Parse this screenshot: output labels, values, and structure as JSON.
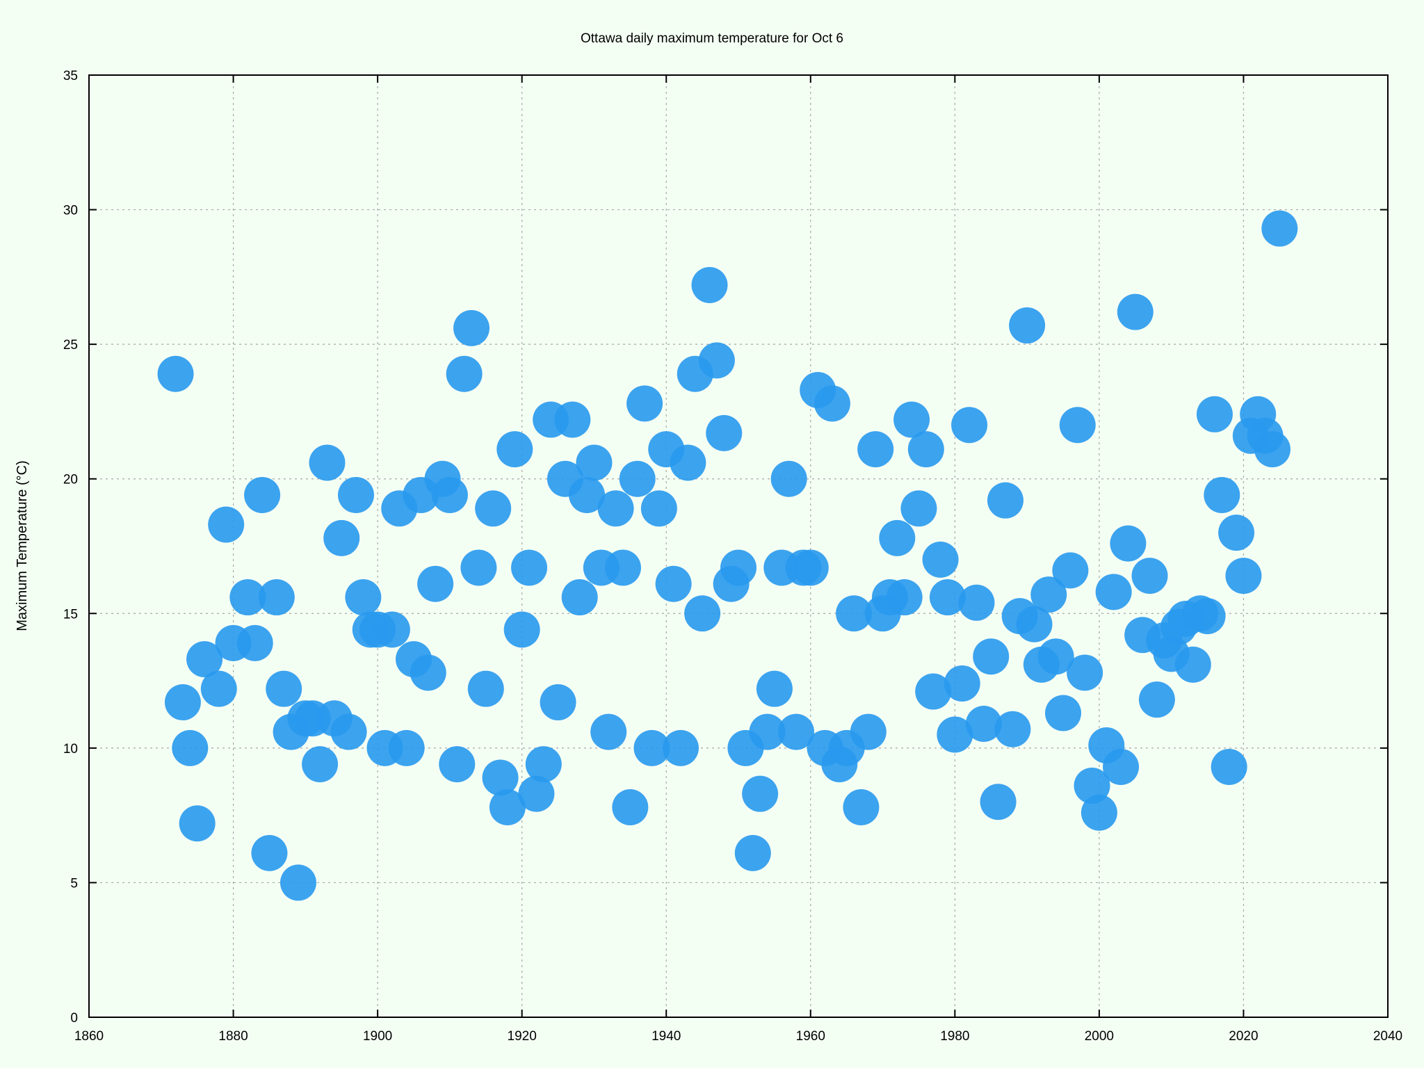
{
  "chart_data": {
    "type": "scatter",
    "title": "Ottawa daily maximum temperature for Oct 6",
    "xlabel": "",
    "ylabel": "Maximum Temperature (°C)",
    "xlim": [
      1860,
      2040
    ],
    "ylim": [
      0,
      35
    ],
    "x_ticks": [
      1860,
      1880,
      1900,
      1920,
      1940,
      1960,
      1980,
      2000,
      2020,
      2040
    ],
    "y_ticks": [
      0,
      5,
      10,
      15,
      20,
      25,
      30,
      35
    ],
    "grid": true,
    "legend": "none",
    "marker_color": "#2899ee",
    "series": [
      {
        "points": [
          [
            1872,
            23.9
          ],
          [
            1873,
            11.7
          ],
          [
            1874,
            10.0
          ],
          [
            1875,
            7.2
          ],
          [
            1876,
            13.3
          ],
          [
            1878,
            12.2
          ],
          [
            1879,
            18.3
          ],
          [
            1880,
            13.9
          ],
          [
            1882,
            15.6
          ],
          [
            1883,
            13.9
          ],
          [
            1884,
            19.4
          ],
          [
            1885,
            6.1
          ],
          [
            1886,
            15.6
          ],
          [
            1887,
            12.2
          ],
          [
            1888,
            10.6
          ],
          [
            1889,
            5.0
          ],
          [
            1890,
            11.1
          ],
          [
            1891,
            11.1
          ],
          [
            1892,
            9.4
          ],
          [
            1893,
            20.6
          ],
          [
            1894,
            11.1
          ],
          [
            1895,
            17.8
          ],
          [
            1896,
            10.6
          ],
          [
            1897,
            19.4
          ],
          [
            1898,
            15.6
          ],
          [
            1899,
            14.4
          ],
          [
            1900,
            14.4
          ],
          [
            1901,
            10.0
          ],
          [
            1902,
            14.4
          ],
          [
            1903,
            18.9
          ],
          [
            1904,
            10.0
          ],
          [
            1905,
            13.3
          ],
          [
            1906,
            19.4
          ],
          [
            1907,
            12.8
          ],
          [
            1908,
            16.1
          ],
          [
            1909,
            20.0
          ],
          [
            1910,
            19.4
          ],
          [
            1911,
            9.4
          ],
          [
            1912,
            23.9
          ],
          [
            1913,
            25.6
          ],
          [
            1914,
            16.7
          ],
          [
            1915,
            12.2
          ],
          [
            1916,
            18.9
          ],
          [
            1917,
            8.9
          ],
          [
            1918,
            7.8
          ],
          [
            1919,
            21.1
          ],
          [
            1920,
            14.4
          ],
          [
            1921,
            16.7
          ],
          [
            1922,
            8.3
          ],
          [
            1923,
            9.4
          ],
          [
            1924,
            22.2
          ],
          [
            1925,
            11.7
          ],
          [
            1926,
            20.0
          ],
          [
            1927,
            22.2
          ],
          [
            1928,
            15.6
          ],
          [
            1929,
            19.4
          ],
          [
            1930,
            20.6
          ],
          [
            1931,
            16.7
          ],
          [
            1932,
            10.6
          ],
          [
            1933,
            18.9
          ],
          [
            1934,
            16.7
          ],
          [
            1935,
            7.8
          ],
          [
            1936,
            20.0
          ],
          [
            1937,
            22.8
          ],
          [
            1938,
            10.0
          ],
          [
            1939,
            18.9
          ],
          [
            1940,
            21.1
          ],
          [
            1941,
            16.1
          ],
          [
            1942,
            10.0
          ],
          [
            1943,
            20.6
          ],
          [
            1944,
            23.9
          ],
          [
            1945,
            15.0
          ],
          [
            1946,
            27.2
          ],
          [
            1947,
            24.4
          ],
          [
            1948,
            21.7
          ],
          [
            1949,
            16.1
          ],
          [
            1950,
            16.7
          ],
          [
            1951,
            10.0
          ],
          [
            1952,
            6.1
          ],
          [
            1953,
            8.3
          ],
          [
            1954,
            10.6
          ],
          [
            1955,
            12.2
          ],
          [
            1956,
            16.7
          ],
          [
            1957,
            20.0
          ],
          [
            1958,
            10.6
          ],
          [
            1959,
            16.7
          ],
          [
            1960,
            16.7
          ],
          [
            1961,
            23.3
          ],
          [
            1962,
            10.0
          ],
          [
            1963,
            22.8
          ],
          [
            1964,
            9.4
          ],
          [
            1965,
            10.0
          ],
          [
            1966,
            15.0
          ],
          [
            1967,
            7.8
          ],
          [
            1968,
            10.6
          ],
          [
            1969,
            21.1
          ],
          [
            1970,
            15.0
          ],
          [
            1971,
            15.6
          ],
          [
            1972,
            17.8
          ],
          [
            1973,
            15.6
          ],
          [
            1974,
            22.2
          ],
          [
            1975,
            18.9
          ],
          [
            1976,
            21.1
          ],
          [
            1977,
            12.1
          ],
          [
            1978,
            17.0
          ],
          [
            1979,
            15.6
          ],
          [
            1980,
            10.5
          ],
          [
            1981,
            12.4
          ],
          [
            1982,
            22.0
          ],
          [
            1983,
            15.4
          ],
          [
            1984,
            10.9
          ],
          [
            1985,
            13.4
          ],
          [
            1986,
            8.0
          ],
          [
            1987,
            19.2
          ],
          [
            1988,
            10.7
          ],
          [
            1989,
            14.9
          ],
          [
            1990,
            25.7
          ],
          [
            1991,
            14.6
          ],
          [
            1992,
            13.1
          ],
          [
            1993,
            15.7
          ],
          [
            1994,
            13.4
          ],
          [
            1995,
            11.3
          ],
          [
            1996,
            16.6
          ],
          [
            1997,
            22.0
          ],
          [
            1998,
            12.8
          ],
          [
            1999,
            8.6
          ],
          [
            2000,
            7.6
          ],
          [
            2001,
            10.1
          ],
          [
            2002,
            15.8
          ],
          [
            2003,
            9.3
          ],
          [
            2004,
            17.6
          ],
          [
            2005,
            26.2
          ],
          [
            2006,
            14.2
          ],
          [
            2007,
            16.4
          ],
          [
            2008,
            11.8
          ],
          [
            2009,
            14.0
          ],
          [
            2010,
            13.5
          ],
          [
            2011,
            14.5
          ],
          [
            2012,
            14.8
          ],
          [
            2013,
            13.1
          ],
          [
            2014,
            15.0
          ],
          [
            2015,
            14.9
          ],
          [
            2016,
            22.4
          ],
          [
            2017,
            19.4
          ],
          [
            2018,
            9.3
          ],
          [
            2019,
            18.0
          ],
          [
            2020,
            16.4
          ],
          [
            2021,
            21.6
          ],
          [
            2022,
            22.4
          ],
          [
            2023,
            21.6
          ],
          [
            2024,
            21.1
          ],
          [
            2025,
            29.3
          ]
        ]
      }
    ]
  }
}
